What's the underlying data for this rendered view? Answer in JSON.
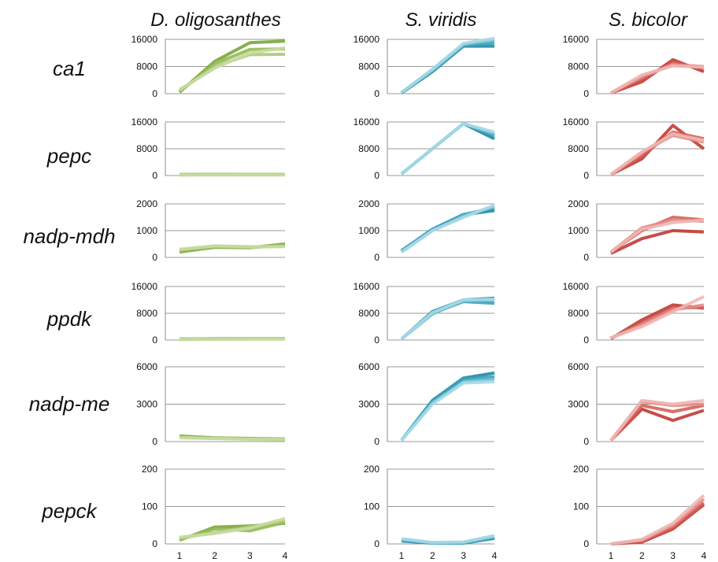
{
  "chart_data": {
    "type": "line",
    "columns": [
      {
        "title": "D. oligosanthes",
        "colors": [
          "#7aa63a",
          "#93b955",
          "#acc97a",
          "#c6dca1"
        ]
      },
      {
        "title": "S. viridis",
        "colors": [
          "#1e8aa6",
          "#3aa2bd",
          "#6dbdd2",
          "#a9d9e6"
        ]
      },
      {
        "title": "S. bicolor",
        "colors": [
          "#c23a33",
          "#d4605a",
          "#e28c87",
          "#efb6b2"
        ]
      }
    ],
    "x": [
      "1",
      "2",
      "3",
      "4"
    ],
    "rows": [
      {
        "label": "ca1",
        "ylim": [
          0,
          16000
        ],
        "yticks": [
          "0",
          "8000",
          "16000"
        ],
        "yvals": [
          0,
          8000,
          16000
        ],
        "panels": [
          [
            [
              400,
              9500,
              15000,
              15500
            ],
            [
              600,
              8800,
              13000,
              13200
            ],
            [
              800,
              8000,
              11500,
              11600
            ],
            [
              1200,
              7500,
              12000,
              13500
            ]
          ],
          [
            [
              200,
              6500,
              14000,
              14000
            ],
            [
              200,
              6800,
              14200,
              15000
            ],
            [
              300,
              7000,
              14500,
              15800
            ],
            [
              400,
              7200,
              14800,
              16300
            ]
          ],
          [
            [
              200,
              3500,
              10000,
              6500
            ],
            [
              200,
              4500,
              9000,
              7500
            ],
            [
              200,
              5000,
              8500,
              8000
            ],
            [
              200,
              5500,
              8200,
              7800
            ]
          ]
        ]
      },
      {
        "label": "pepc",
        "ylim": [
          0,
          16000
        ],
        "yticks": [
          "0",
          "8000",
          "16000"
        ],
        "yvals": [
          0,
          8000,
          16000
        ],
        "panels": [
          [
            [
              300,
              350,
              300,
              300
            ],
            [
              250,
              300,
              280,
              280
            ],
            [
              200,
              250,
              250,
              250
            ],
            [
              150,
              200,
              200,
              200
            ]
          ],
          [
            [
              500,
              8000,
              15500,
              11000
            ],
            [
              500,
              8000,
              15500,
              12000
            ],
            [
              500,
              8000,
              15500,
              12500
            ],
            [
              500,
              8000,
              15500,
              13000
            ]
          ],
          [
            [
              300,
              5000,
              15000,
              8000
            ],
            [
              300,
              6000,
              13000,
              11000
            ],
            [
              300,
              7000,
              12000,
              10000
            ],
            [
              300,
              7000,
              12500,
              10500
            ]
          ]
        ]
      },
      {
        "label": "nadp-mdh",
        "ylim": [
          0,
          2000
        ],
        "yticks": [
          "0",
          "1000",
          "2000"
        ],
        "yvals": [
          0,
          1000,
          2000
        ],
        "panels": [
          [
            [
              200,
              380,
              360,
              500
            ],
            [
              250,
              400,
              370,
              450
            ],
            [
              280,
              420,
              380,
              420
            ],
            [
              300,
              430,
              400,
              400
            ]
          ],
          [
            [
              250,
              1050,
              1600,
              1750
            ],
            [
              230,
              1050,
              1600,
              1850
            ],
            [
              210,
              1000,
              1550,
              1900
            ],
            [
              190,
              1000,
              1500,
              1950
            ]
          ],
          [
            [
              150,
              700,
              1000,
              950
            ],
            [
              200,
              1000,
              1500,
              1400
            ],
            [
              200,
              1100,
              1400,
              1350
            ],
            [
              200,
              1050,
              1300,
              1400
            ]
          ]
        ]
      },
      {
        "label": "ppdk",
        "ylim": [
          0,
          16000
        ],
        "yticks": [
          "0",
          "8000",
          "16000"
        ],
        "yvals": [
          0,
          8000,
          16000
        ],
        "panels": [
          [
            [
              300,
              400,
              400,
              400
            ],
            [
              250,
              350,
              380,
              380
            ],
            [
              200,
              300,
              350,
              350
            ],
            [
              150,
              250,
              300,
              300
            ]
          ],
          [
            [
              300,
              8500,
              12000,
              12500
            ],
            [
              300,
              8000,
              11500,
              11000
            ],
            [
              300,
              7800,
              11800,
              12000
            ],
            [
              300,
              8200,
              12000,
              12200
            ]
          ],
          [
            [
              400,
              6000,
              10500,
              9500
            ],
            [
              500,
              5000,
              9500,
              9800
            ],
            [
              600,
              4500,
              9000,
              10500
            ],
            [
              700,
              4000,
              8500,
              13000
            ]
          ]
        ]
      },
      {
        "label": "nadp-me",
        "ylim": [
          0,
          6000
        ],
        "yticks": [
          "0",
          "3000",
          "6000"
        ],
        "yvals": [
          0,
          3000,
          6000
        ],
        "panels": [
          [
            [
              450,
              300,
              250,
              200
            ],
            [
              400,
              280,
              220,
              180
            ],
            [
              350,
              260,
              200,
              170
            ],
            [
              300,
              250,
              190,
              160
            ]
          ],
          [
            [
              100,
              3300,
              5100,
              5500
            ],
            [
              100,
              3200,
              5000,
              5200
            ],
            [
              100,
              3100,
              4800,
              5000
            ],
            [
              100,
              3000,
              4700,
              4800
            ]
          ],
          [
            [
              100,
              2600,
              1700,
              2500
            ],
            [
              100,
              2900,
              2400,
              2900
            ],
            [
              100,
              3200,
              2900,
              3000
            ],
            [
              100,
              3300,
              3000,
              3300
            ]
          ]
        ]
      },
      {
        "label": "pepck",
        "ylim": [
          0,
          200
        ],
        "yticks": [
          "0",
          "100",
          "200"
        ],
        "yvals": [
          0,
          100,
          200
        ],
        "panels": [
          [
            [
              10,
              45,
              48,
              55
            ],
            [
              12,
              40,
              35,
              58
            ],
            [
              15,
              30,
              45,
              62
            ],
            [
              18,
              28,
              42,
              68
            ]
          ],
          [
            [
              8,
              2,
              2,
              15
            ],
            [
              10,
              3,
              3,
              18
            ],
            [
              12,
              3,
              4,
              20
            ],
            [
              14,
              4,
              5,
              22
            ]
          ],
          [
            [
              0,
              5,
              40,
              105
            ],
            [
              0,
              8,
              45,
              110
            ],
            [
              0,
              10,
              50,
              120
            ],
            [
              0,
              12,
              55,
              130
            ]
          ]
        ]
      }
    ]
  }
}
